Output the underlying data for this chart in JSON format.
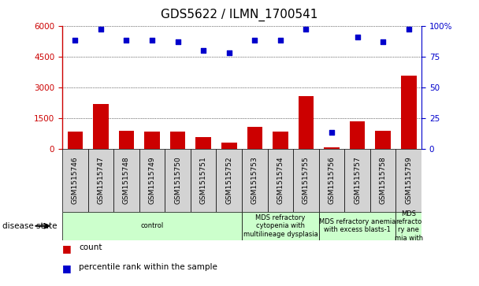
{
  "title": "GDS5622 / ILMN_1700541",
  "samples": [
    "GSM1515746",
    "GSM1515747",
    "GSM1515748",
    "GSM1515749",
    "GSM1515750",
    "GSM1515751",
    "GSM1515752",
    "GSM1515753",
    "GSM1515754",
    "GSM1515755",
    "GSM1515756",
    "GSM1515757",
    "GSM1515758",
    "GSM1515759"
  ],
  "counts": [
    820,
    2200,
    870,
    820,
    820,
    550,
    280,
    1050,
    820,
    2550,
    80,
    1350,
    870,
    3550
  ],
  "percentile_ranks": [
    88,
    97,
    88,
    88,
    87,
    80,
    78,
    88,
    88,
    97,
    13,
    91,
    87,
    97
  ],
  "bar_color": "#cc0000",
  "dot_color": "#0000cc",
  "ylim_left": [
    0,
    6000
  ],
  "ylim_right": [
    0,
    100
  ],
  "yticks_left": [
    0,
    1500,
    3000,
    4500,
    6000
  ],
  "yticks_right": [
    0,
    25,
    50,
    75,
    100
  ],
  "disease_states": [
    {
      "label": "control",
      "start": 0,
      "end": 7
    },
    {
      "label": "MDS refractory\ncytopenia with\nmultilineage dysplasia",
      "start": 7,
      "end": 10
    },
    {
      "label": "MDS refractory anemia\nwith excess blasts-1",
      "start": 10,
      "end": 13
    },
    {
      "label": "MDS\nrefracto\nry ane\nmia with",
      "start": 13,
      "end": 14
    }
  ],
  "disease_state_label": "disease state",
  "legend_count_label": "count",
  "legend_pct_label": "percentile rank within the sample",
  "ds_color": "#ccffcc",
  "sample_box_color": "#d3d3d3",
  "title_fontsize": 11,
  "tick_fontsize": 7.5,
  "bar_width": 0.6
}
